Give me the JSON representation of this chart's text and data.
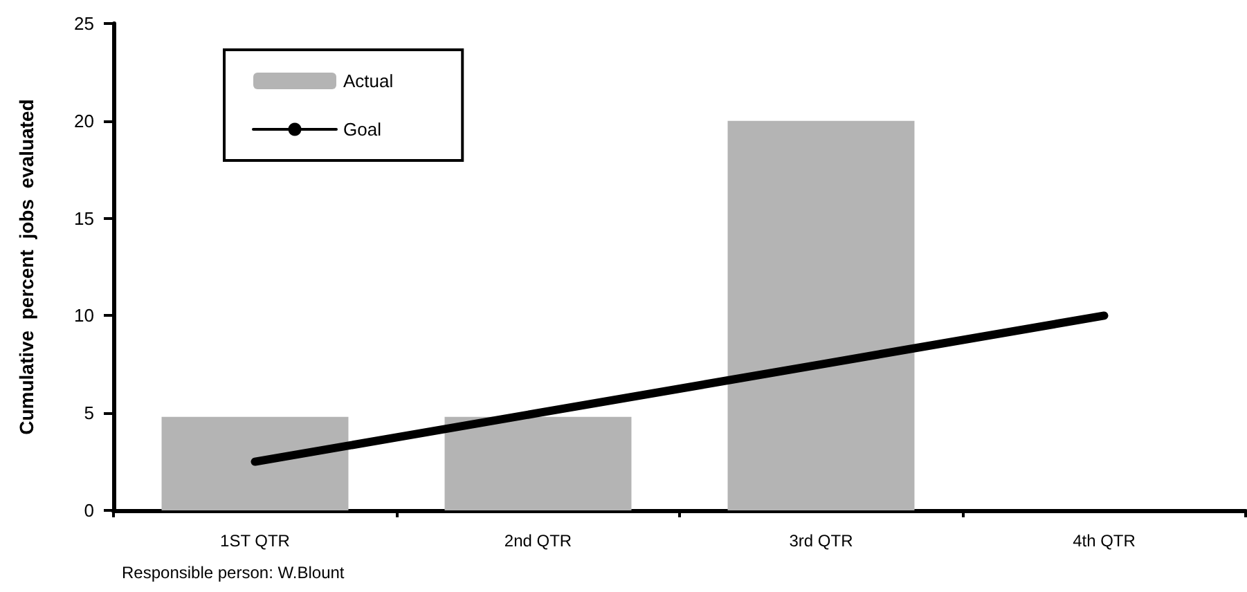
{
  "chart_data": {
    "type": "bar",
    "ylabel": "Cumulative  percent  jobs  evaluated",
    "categories": [
      "1ST QTR",
      "2nd QTR",
      "3rd QTR",
      "4th QTR"
    ],
    "series": [
      {
        "name": "Actual",
        "color": "#b4b4b4",
        "values": [
          4.8,
          4.8,
          20,
          null
        ]
      },
      {
        "name": "Goal",
        "type": "line",
        "color": "#000000",
        "values": [
          2.5,
          5,
          7.5,
          10
        ]
      }
    ],
    "ylim": [
      0,
      25
    ],
    "yticks": [
      0,
      5,
      10,
      15,
      20,
      25
    ],
    "grid": false,
    "legend": "top left",
    "marker": "none",
    "line_style": "solid",
    "annotations": [
      "Responsible person: W.Blount"
    ]
  }
}
